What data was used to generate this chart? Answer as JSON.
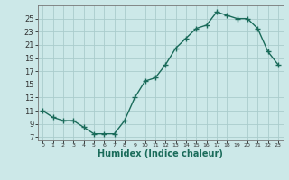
{
  "x": [
    0,
    1,
    2,
    3,
    4,
    5,
    6,
    7,
    8,
    9,
    10,
    11,
    12,
    13,
    14,
    15,
    16,
    17,
    18,
    19,
    20,
    21,
    22,
    23
  ],
  "y": [
    11,
    10,
    9.5,
    9.5,
    8.5,
    7.5,
    7.5,
    7.5,
    9.5,
    13,
    15.5,
    16,
    18,
    20.5,
    22,
    23.5,
    24,
    26,
    25.5,
    25,
    25,
    23.5,
    20,
    18
  ],
  "line_color": "#1a6b5a",
  "marker": "+",
  "bg_color": "#cce8e8",
  "grid_color": "#aacccc",
  "xlabel": "Humidex (Indice chaleur)",
  "yticks": [
    7,
    9,
    11,
    13,
    15,
    17,
    19,
    21,
    23,
    25
  ],
  "xtick_labels": [
    "0",
    "1",
    "2",
    "3",
    "4",
    "5",
    "6",
    "7",
    "8",
    "9",
    "10",
    "11",
    "12",
    "13",
    "14",
    "15",
    "16",
    "17",
    "18",
    "19",
    "20",
    "21",
    "22",
    "23"
  ],
  "ylim": [
    6.5,
    27
  ],
  "xlim": [
    -0.5,
    23.5
  ],
  "xlabel_fontsize": 7,
  "ytick_fontsize": 6,
  "xtick_fontsize": 4.5,
  "line_width": 1.0,
  "marker_size": 4,
  "marker_edge_width": 1.0
}
